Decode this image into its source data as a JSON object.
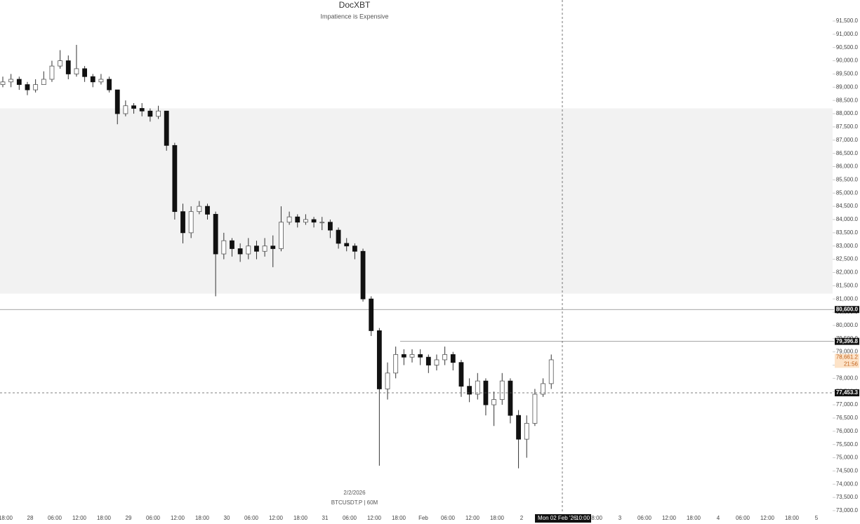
{
  "chart_data": {
    "type": "candlestick",
    "title": "DocXBT",
    "subtitle": "Impatience is Expensive",
    "date_label": "2/2/2026",
    "symbol_label": "BTCUSDT.P | 60M",
    "up_color": "#ffffff",
    "down_color": "#111111",
    "outline_color": "#555555",
    "open": [
      89100,
      89200,
      89300,
      89100,
      88900,
      89100,
      89300,
      89800,
      90000,
      89500,
      89700,
      89400,
      89200,
      89300,
      88900,
      88000,
      88300,
      88200,
      88100,
      87900,
      88100,
      86800,
      84300,
      83500,
      84300,
      84500,
      84200,
      82700,
      83200,
      82900,
      82700,
      83000,
      82800,
      83000,
      82900,
      83900,
      84100,
      83900,
      84000,
      83900,
      83900,
      83600,
      83100,
      83000,
      82800,
      81000,
      79800,
      77600,
      78200,
      78900,
      78800,
      78900,
      78800,
      78500,
      78700,
      78900,
      78600,
      77700,
      77400,
      77900,
      77000,
      77200,
      77900,
      76600,
      75700,
      76300,
      77400,
      77800
    ],
    "high": [
      89400,
      89500,
      89400,
      89200,
      89300,
      89600,
      90000,
      90400,
      90200,
      90600,
      89800,
      89500,
      89500,
      89400,
      88900,
      88500,
      88400,
      88400,
      88200,
      88300,
      88100,
      86900,
      84600,
      84500,
      84700,
      84600,
      84300,
      83500,
      83300,
      83100,
      83300,
      83200,
      83300,
      83400,
      84500,
      84300,
      84200,
      84200,
      84100,
      84100,
      84000,
      83700,
      83300,
      83100,
      82900,
      81100,
      79900,
      78600,
      79200,
      79100,
      79100,
      79100,
      78900,
      78900,
      79200,
      79000,
      78700,
      78000,
      78200,
      78000,
      77500,
      78200,
      78000,
      76800,
      76600,
      77600,
      78000,
      78900
    ],
    "low": [
      89000,
      89000,
      88900,
      88700,
      88800,
      89100,
      89200,
      89700,
      89300,
      89400,
      89200,
      89000,
      89100,
      88800,
      87600,
      87900,
      88000,
      87900,
      87700,
      87800,
      86600,
      84000,
      83100,
      83300,
      84200,
      84000,
      81100,
      82500,
      82600,
      82400,
      82500,
      82500,
      82600,
      82200,
      82800,
      83800,
      83700,
      83800,
      83700,
      83600,
      83300,
      82900,
      82800,
      82500,
      80900,
      79600,
      74700,
      77200,
      78000,
      78500,
      78600,
      78500,
      78200,
      78300,
      78500,
      78300,
      77300,
      77100,
      77200,
      76600,
      76200,
      77000,
      76300,
      74600,
      75000,
      76200,
      77300,
      77600
    ],
    "close": [
      89200,
      89300,
      89100,
      88900,
      89100,
      89300,
      89800,
      90000,
      89500,
      89700,
      89400,
      89200,
      89300,
      88900,
      88000,
      88300,
      88200,
      88100,
      87900,
      88100,
      86800,
      84300,
      83500,
      84300,
      84500,
      84200,
      82700,
      83200,
      82900,
      82700,
      83000,
      82800,
      83000,
      82900,
      83900,
      84100,
      83900,
      84000,
      83900,
      83900,
      83600,
      83100,
      83000,
      82800,
      81000,
      79800,
      77600,
      78200,
      78900,
      78800,
      78900,
      78800,
      78500,
      78700,
      78900,
      78600,
      77700,
      77400,
      77900,
      77000,
      77200,
      77900,
      76600,
      75700,
      76300,
      77400,
      77800,
      78700
    ],
    "ylim": [
      73000,
      91500
    ],
    "yticks": [
      {
        "value": 73000,
        "label": "73,000.0"
      },
      {
        "value": 73500,
        "label": "73,500.0"
      },
      {
        "value": 74000,
        "label": "74,000.0"
      },
      {
        "value": 74500,
        "label": "74,500.0"
      },
      {
        "value": 75000,
        "label": "75,000.0"
      },
      {
        "value": 75500,
        "label": "75,500.0"
      },
      {
        "value": 76000,
        "label": "76,000.0"
      },
      {
        "value": 76500,
        "label": "76,500.0"
      },
      {
        "value": 77000,
        "label": "77,000.0"
      },
      {
        "value": 77500,
        "label": "77,500.0"
      },
      {
        "value": 78000,
        "label": "78,000.0"
      },
      {
        "value": 78500,
        "label": "78,500.0"
      },
      {
        "value": 79000,
        "label": "79,000.0"
      },
      {
        "value": 79500,
        "label": "79,500.0"
      },
      {
        "value": 80000,
        "label": "80,000.0"
      },
      {
        "value": 80500,
        "label": "80,500.0"
      },
      {
        "value": 81000,
        "label": "81,000.0"
      },
      {
        "value": 81500,
        "label": "81,500.0"
      },
      {
        "value": 82000,
        "label": "82,000.0"
      },
      {
        "value": 82500,
        "label": "82,500.0"
      },
      {
        "value": 83000,
        "label": "83,000.0"
      },
      {
        "value": 83500,
        "label": "83,500.0"
      },
      {
        "value": 84000,
        "label": "84,000.0"
      },
      {
        "value": 84500,
        "label": "84,500.0"
      },
      {
        "value": 85000,
        "label": "85,000.0"
      },
      {
        "value": 85500,
        "label": "85,500.0"
      },
      {
        "value": 86000,
        "label": "86,000.0"
      },
      {
        "value": 86500,
        "label": "86,500.0"
      },
      {
        "value": 87000,
        "label": "87,000.0"
      },
      {
        "value": 87500,
        "label": "87,500.0"
      },
      {
        "value": 88000,
        "label": "88,000.0"
      },
      {
        "value": 88500,
        "label": "88,500.0"
      },
      {
        "value": 89000,
        "label": "89,000.0"
      },
      {
        "value": 89500,
        "label": "89,500.0"
      },
      {
        "value": 90000,
        "label": "90,000.0"
      },
      {
        "value": 90500,
        "label": "90,500.0"
      },
      {
        "value": 91000,
        "label": "91,000.0"
      },
      {
        "value": 91500,
        "label": "91,500.0"
      }
    ],
    "time_labels": [
      "18:00",
      "28",
      "06:00",
      "12:00",
      "18:00",
      "29",
      "06:00",
      "12:00",
      "18:00",
      "30",
      "06:00",
      "12:00",
      "18:00",
      "31",
      "06:00",
      "12:00",
      "18:00",
      "Feb",
      "06:00",
      "12:00",
      "18:00",
      "2",
      null,
      null,
      "18:00",
      "3",
      "06:00",
      "12:00",
      "18:00",
      "4",
      "06:00",
      "12:00",
      "18:00",
      "5"
    ],
    "zone": [
      81200,
      88200
    ],
    "levels": [
      {
        "value": 80600,
        "label": "80,600.0"
      },
      {
        "value": 79396.8,
        "label": "79,396.8"
      }
    ],
    "last_price": {
      "value": 78661.2,
      "label": "78,661.2",
      "countdown": "21:56"
    },
    "crosshair": {
      "value": 77453.3,
      "label": "77,453.3",
      "date": "Mon 02 Feb '26",
      "time": "10:00"
    }
  }
}
